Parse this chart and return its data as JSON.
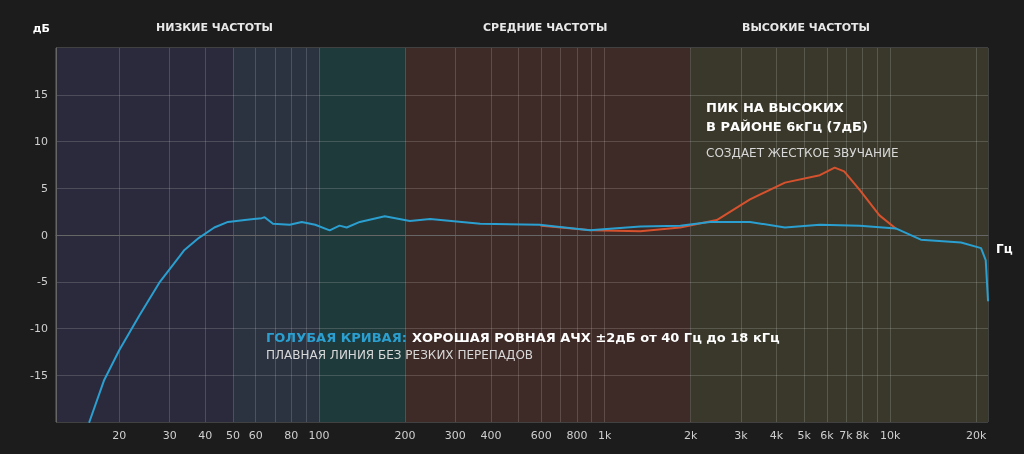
{
  "chart_data": {
    "type": "line",
    "xlabel": "Гц",
    "ylabel": "дБ",
    "log": "x",
    "xlim": [
      12,
      22000
    ],
    "ylim": [
      -20,
      20
    ],
    "xticks": [
      20,
      30,
      40,
      50,
      60,
      {
        "value": 70,
        "label": null
      },
      80,
      {
        "value": 90,
        "label": null
      },
      100,
      200,
      300,
      400,
      {
        "value": 500,
        "label": null
      },
      600,
      {
        "value": 700,
        "label": null
      },
      800,
      {
        "value": 900,
        "label": null
      },
      {
        "value": 1000,
        "label": "1k"
      },
      {
        "value": 2000,
        "label": "2k"
      },
      {
        "value": 3000,
        "label": "3k"
      },
      {
        "value": 4000,
        "label": "4k"
      },
      {
        "value": 5000,
        "label": "5k"
      },
      {
        "value": 6000,
        "label": "6k"
      },
      {
        "value": 7000,
        "label": "7k"
      },
      {
        "value": 8000,
        "label": "8k"
      },
      {
        "value": 9000,
        "label": null
      },
      {
        "value": 10000,
        "label": "10k"
      },
      {
        "value": 20000,
        "label": "20k"
      }
    ],
    "yticks": [
      -15,
      -10,
      -5,
      0,
      5,
      10,
      15
    ],
    "grid": true,
    "marker": "none",
    "line_style": "solid",
    "series": [
      {
        "color": "#2a9fd0",
        "x": [
          15.7,
          17.7,
          20,
          23.5,
          27.6,
          33.8,
          38,
          43,
          48,
          55,
          63,
          64.5,
          69,
          79,
          87,
          97,
          109,
          118,
          125,
          139,
          170,
          208,
          245,
          367,
          592,
          888,
          1333,
          1840,
          2338,
          3230,
          4280,
          5670,
          7830,
          10460,
          12800,
          17700,
          20800,
          21600,
          22000
        ],
        "values": [
          -20,
          -15.5,
          -12.3,
          -8.6,
          -5.1,
          -1.6,
          -0.3,
          0.8,
          1.4,
          1.6,
          1.8,
          1.9,
          1.2,
          1.1,
          1.4,
          1.1,
          0.5,
          1.0,
          0.8,
          1.4,
          2.0,
          1.5,
          1.7,
          1.2,
          1.1,
          0.5,
          0.9,
          1.0,
          1.4,
          1.4,
          0.8,
          1.1,
          1.0,
          0.7,
          -0.5,
          -0.8,
          -1.4,
          -2.7,
          -7.0
        ]
      },
      {
        "color": "#d6522e",
        "x": [
          600,
          900,
          1333,
          1840,
          2470,
          3230,
          4280,
          5670,
          6390,
          6900,
          7830,
          9170,
          10460
        ],
        "values": [
          1.0,
          0.5,
          0.4,
          0.8,
          1.6,
          3.8,
          5.6,
          6.4,
          7.2,
          6.8,
          4.8,
          2.1,
          0.7
        ]
      }
    ],
    "bands": [
      {
        "axis": "x",
        "from": 12,
        "to": 50,
        "color": "#2a2a3c"
      },
      {
        "axis": "x",
        "from": 50,
        "to": 100,
        "color": "#2b3340"
      },
      {
        "axis": "x",
        "from": 100,
        "to": 200,
        "color": "#1f3a3b"
      },
      {
        "axis": "x",
        "from": 200,
        "to": 2000,
        "color": "#3e2a26"
      },
      {
        "axis": "x",
        "from": 2000,
        "to": 22000,
        "color": "#3a382a"
      }
    ],
    "annotations": [
      "ПИК НА ВЫСОКИХ\nВ РАЙОНЕ 6кГц (7дБ)",
      "СОЗДАЕТ ЖЕСТКОЕ ЗВУЧАНИЕ",
      "ГОЛУБАЯ КРИВАЯ:",
      "ХОРОШАЯ РОВНАЯ АЧХ ±2дБ от 40 Гц до 18 кГц",
      "ПЛАВНАЯ ЛИНИЯ БЕЗ РЕЗКИХ ПЕРЕПАДОВ",
      "НИЗКИЕ ЧАСТОТЫ",
      "СРЕДНИЕ ЧАСТОТЫ",
      "ВЫСОКИЕ ЧАСТОТЫ"
    ]
  }
}
